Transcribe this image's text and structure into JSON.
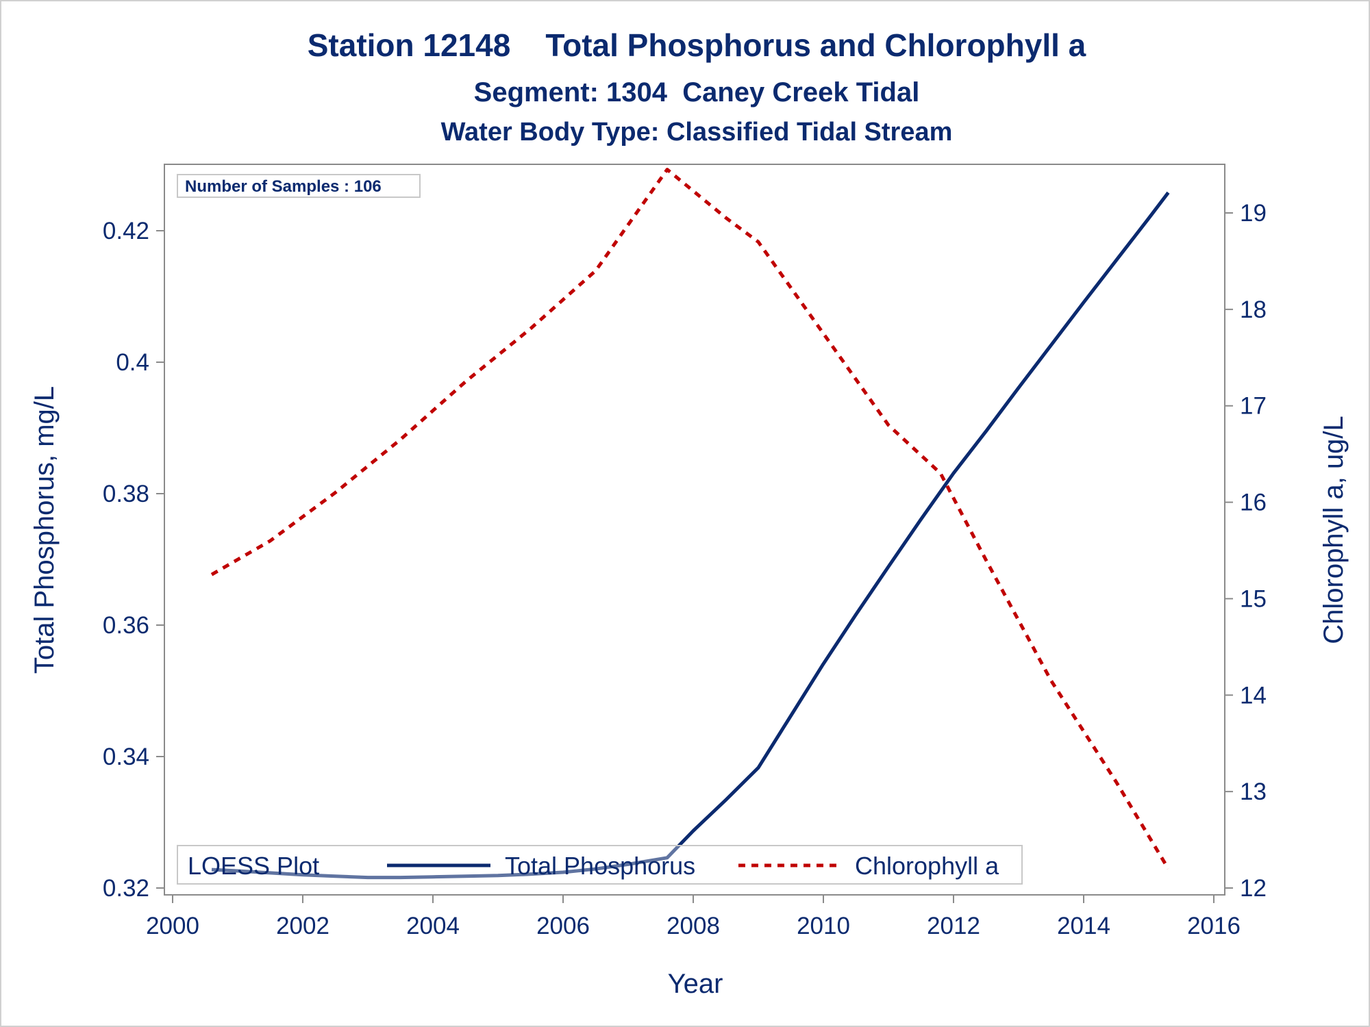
{
  "chart_data": {
    "type": "line",
    "title": "Station 12148    Total Phosphorus and Chlorophyll a",
    "subtitle": "Segment: 1304  Caney Creek Tidal",
    "subtitle2": "Water Body Type: Classified Tidal Stream",
    "xlabel": "Year",
    "ylabel": "Total Phosphorus, mg/L",
    "y2label": "Chlorophyll a, ug/L",
    "inset": "Number of Samples : 106",
    "xlim": [
      2000,
      2016
    ],
    "ylim": [
      0.32,
      0.428
    ],
    "y2lim": [
      12,
      19.5
    ],
    "xticks": [
      "2000",
      "2002",
      "2004",
      "2006",
      "2008",
      "2010",
      "2012",
      "2014",
      "2016"
    ],
    "yticks": [
      "0.32",
      "0.34",
      "0.36",
      "0.38",
      "0.4",
      "0.42"
    ],
    "y2ticks": [
      "12",
      "13",
      "14",
      "15",
      "16",
      "17",
      "18",
      "19"
    ],
    "grid": false,
    "legend": {
      "placement": "bottom-left inside",
      "title": "LOESS Plot",
      "entries": [
        "Total Phosphorus",
        "Chlorophyll a"
      ]
    },
    "series": [
      {
        "name": "Total Phosphorus",
        "axis": "left",
        "color": "#0b2a6f",
        "style": "solid",
        "x": [
          2000.6,
          2001.0,
          2001.5,
          2002.0,
          2002.5,
          2003.0,
          2003.5,
          2004.0,
          2004.5,
          2005.0,
          2005.5,
          2006.0,
          2006.5,
          2007.0,
          2007.6,
          2008.0,
          2008.5,
          2009.0,
          2009.5,
          2010.0,
          2010.5,
          2011.0,
          2011.5,
          2012.0,
          2012.5,
          2013.0,
          2013.5,
          2014.0,
          2014.5,
          2015.0,
          2015.3
        ],
        "values": [
          0.3228,
          0.3226,
          0.3223,
          0.322,
          0.3218,
          0.3216,
          0.3216,
          0.3217,
          0.3218,
          0.3219,
          0.3221,
          0.3224,
          0.3229,
          0.3236,
          0.3246,
          0.3287,
          0.3334,
          0.3383,
          0.3462,
          0.3541,
          0.3616,
          0.3689,
          0.3761,
          0.3831,
          0.3895,
          0.3961,
          0.4026,
          0.4091,
          0.4155,
          0.4219,
          0.4258
        ]
      },
      {
        "name": "Chlorophyll a",
        "axis": "right",
        "color": "#c00000",
        "style": "dashed",
        "x": [
          2000.6,
          2001.5,
          2002.5,
          2003.5,
          2004.5,
          2005.5,
          2006.5,
          2007.6,
          2008.5,
          2009.0,
          2010.0,
          2011.0,
          2011.8,
          2012.5,
          2013.5,
          2014.5,
          2015.3
        ],
        "values": [
          15.25,
          15.6,
          16.1,
          16.65,
          17.25,
          17.8,
          18.4,
          19.45,
          18.95,
          18.7,
          17.75,
          16.8,
          16.3,
          15.4,
          14.15,
          13.1,
          12.2
        ]
      }
    ]
  }
}
